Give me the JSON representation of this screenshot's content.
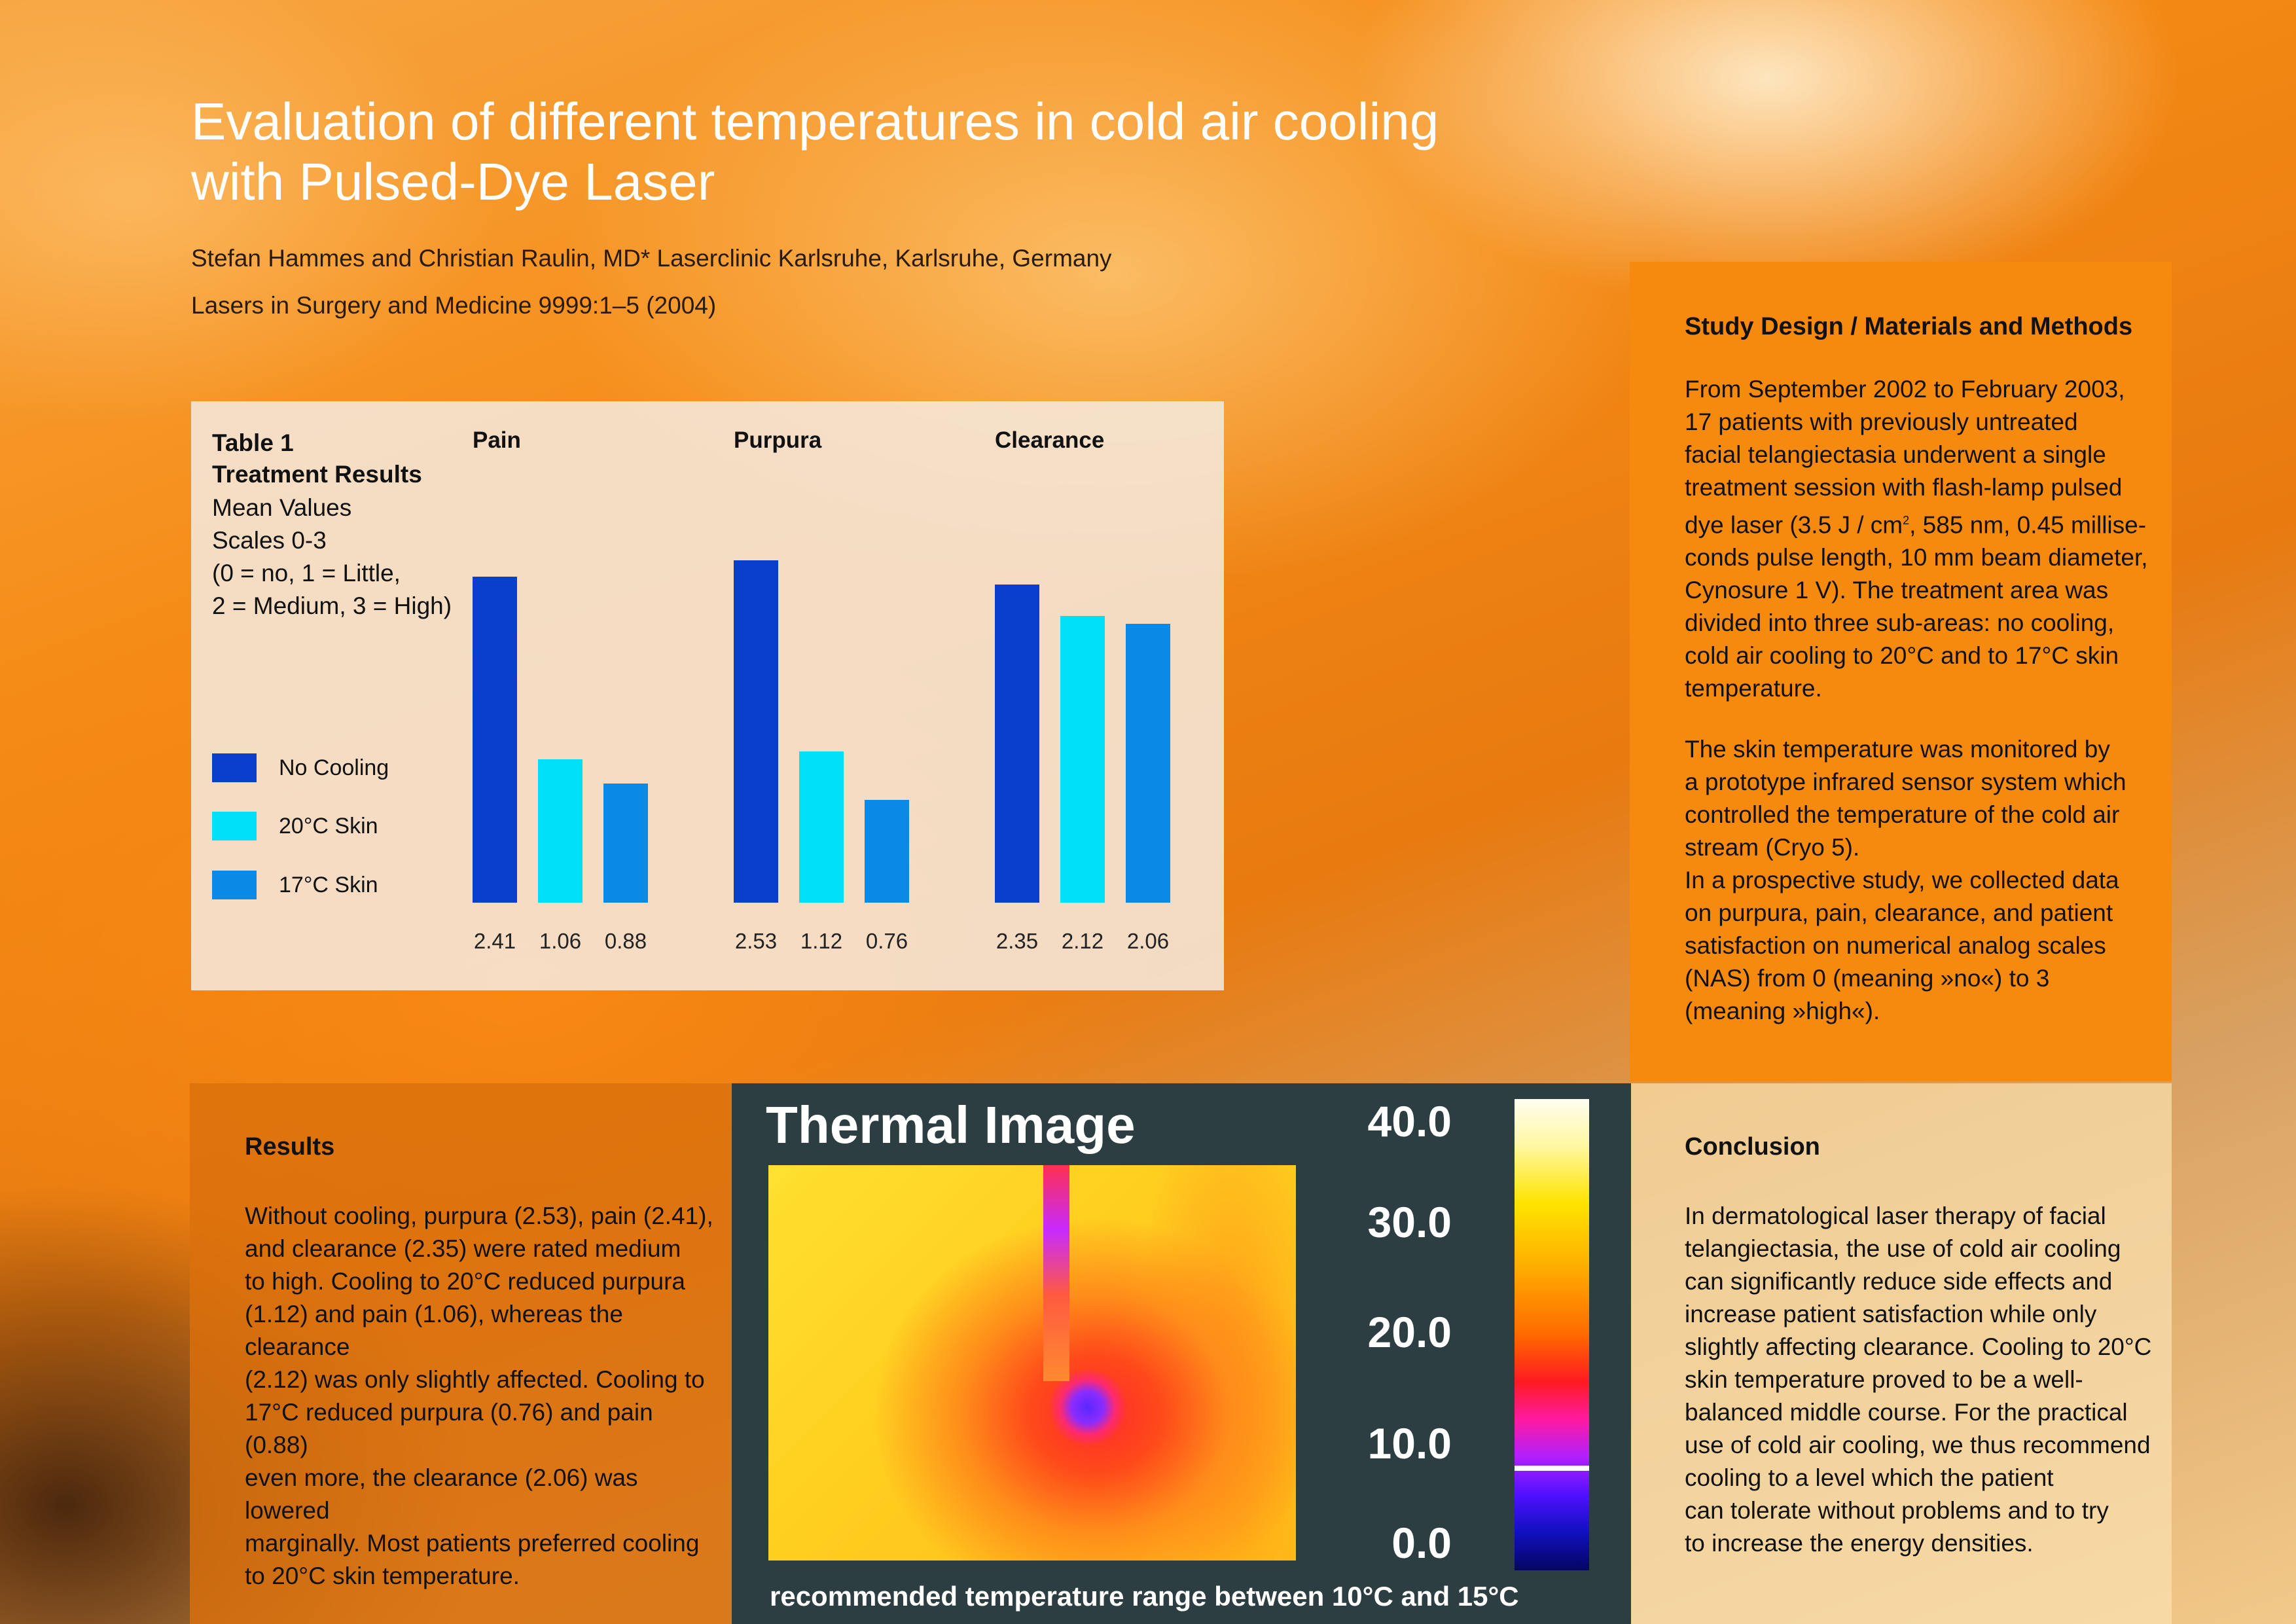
{
  "header": {
    "title_line1": "Evaluation of different temperatures in cold air cooling",
    "title_line2": "with Pulsed-Dye Laser",
    "authors": "Stefan Hammes and Christian Raulin, MD* Laserclinic Karlsruhe, Karlsruhe, Germany",
    "journal": "Lasers in Surgery and Medicine 9999:1–5 (2004)"
  },
  "table1": {
    "title_line1": "Table 1",
    "title_line2": "Treatment Results",
    "desc_line1": "Mean Values",
    "desc_line2": "Scales 0-3",
    "desc_line3": "(0 = no, 1 = Little,",
    "desc_line4": "2 = Medium, 3 = High)"
  },
  "chart_data": {
    "type": "bar",
    "categories": [
      "Pain",
      "Purpura",
      "Clearance"
    ],
    "series": [
      {
        "name": "No Cooling",
        "color": "#0a3fce",
        "values": [
          2.41,
          2.53,
          2.35
        ]
      },
      {
        "name": "20°C Skin",
        "color": "#00e0f8",
        "values": [
          1.06,
          1.12,
          2.12
        ]
      },
      {
        "name": "17°C Skin",
        "color": "#0a8ae6",
        "values": [
          0.88,
          0.76,
          2.06
        ]
      }
    ],
    "value_labels": [
      [
        "2.41",
        "1.06",
        "0.88"
      ],
      [
        "2.53",
        "1.12",
        "0.76"
      ],
      [
        "2.35",
        "2.12",
        "2.06"
      ]
    ],
    "ylim": [
      0,
      3
    ],
    "legend_placement": "left",
    "grid": false,
    "title": "",
    "xlabel": "",
    "ylabel": ""
  },
  "study": {
    "heading": "Study Design / Materials and Methods",
    "para1_a": "From September 2002 to February 2003,\n17 patients with previously untreated\nfacial telangiectasia underwent a single\ntreatment session with flash-lamp pulsed\ndye laser (3.5 J / cm",
    "para1_sup": "2",
    "para1_b": ", 585 nm, 0.45 millise-\nconds pulse length, 10 mm beam diameter,\nCynosure 1 V). The treatment area was\ndivided into three sub-areas: no cooling,\ncold air cooling to 20°C and to 17°C skin\ntemperature.",
    "para2": "The skin temperature was monitored by\na prototype infrared sensor system which\ncontrolled the temperature of the cold air\nstream (Cryo 5).\nIn a prospective study, we collected data\non purpura, pain, clearance, and patient\nsatisfaction on numerical analog scales\n(NAS) from 0 (meaning »no«) to 3\n(meaning »high«)."
  },
  "results": {
    "heading": "Results",
    "body": "Without cooling, purpura (2.53), pain (2.41),\nand clearance (2.35) were rated medium\nto high. Cooling to 20°C reduced purpura\n(1.12) and pain (1.06), whereas the clearance\n(2.12) was only slightly affected. Cooling to\n17°C reduced purpura (0.76) and pain (0.88)\neven more, the clearance (2.06) was lowered\nmarginally. Most patients preferred cooling\nto 20°C skin temperature."
  },
  "thermal": {
    "title": "Thermal Image",
    "scale": [
      "40.0",
      "30.0",
      "20.0",
      "10.0",
      "0.0"
    ],
    "caption": "recommended temperature range between 10°C and 15°C"
  },
  "conclusion": {
    "heading": "Conclusion",
    "body": "In dermatological laser therapy of facial\ntelangiectasia, the use of cold air cooling\ncan significantly reduce side effects and\nincrease patient satisfaction while only\nslightly affecting clearance. Cooling to 20°C\nskin temperature proved to be a well-\nbalanced middle course. For the practical\nuse of cold air cooling, we thus recommend\ncooling to a level which the patient\ncan tolerate without problems and to try\nto increase the energy densities."
  }
}
